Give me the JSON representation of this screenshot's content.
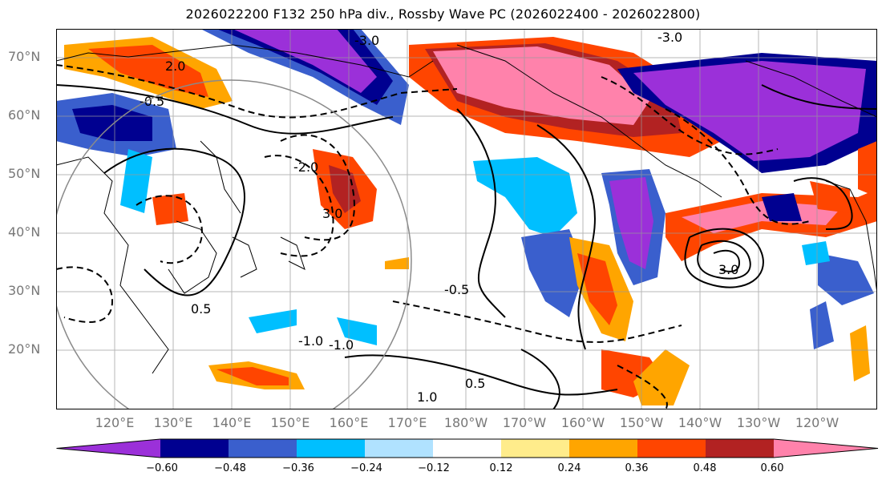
{
  "title": "2026022200 F132 250 hPa div., Rossby Wave PC (2026022400 - 2026022800)",
  "map": {
    "lat_labels": [
      "70°N",
      "60°N",
      "50°N",
      "40°N",
      "30°N",
      "20°N"
    ],
    "lon_labels": [
      "120°E",
      "130°E",
      "140°E",
      "150°E",
      "160°E",
      "170°E",
      "180°W",
      "170°W",
      "160°W",
      "150°W",
      "140°W",
      "130°W",
      "120°W"
    ],
    "contour_labels": [
      "-3.0",
      "-2.0",
      "-1.0",
      "-0.5",
      "0.5",
      "1.0",
      "2.0",
      "3.0"
    ]
  },
  "colorbar": {
    "ticks": [
      "−0.60",
      "−0.48",
      "−0.36",
      "−0.24",
      "−0.12",
      "0.12",
      "0.24",
      "0.36",
      "0.48",
      "0.60"
    ],
    "colors": [
      "#9b30d9",
      "#000090",
      "#3a5fcd",
      "#00bfff",
      "#b0e2ff",
      "#ffffff",
      "#ffec8b",
      "#ffa500",
      "#ff4500",
      "#b22222",
      "#ff82ab"
    ]
  }
}
